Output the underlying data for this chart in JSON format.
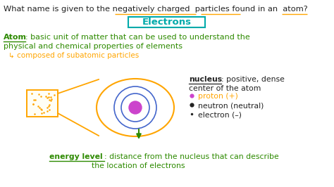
{
  "bg_color": "#ffffff",
  "question_color": "#222222",
  "orange_color": "#FFA500",
  "dark_green": "#2d8a00",
  "teal_color": "#00aaaa",
  "black": "#222222",
  "magenta": "#cc44cc",
  "blue_orbit": "#4466cc",
  "font_family": "sans-serif",
  "q_text": "What name is given to the negatively charged  particles found in an  atom?",
  "electrons_text": "Electrons",
  "atom_line1_prefix": "Atom",
  "atom_line1_rest": ": basic unit of matter that can be used to understand the",
  "atom_line2": "physical and chemical properties of elements",
  "atom_arrow": "↳ composed of subatomic particles",
  "nucleus_word": "nucleus",
  "nucleus_rest": ": positive, dense",
  "nucleus_line2": "center of the atom",
  "proton_text": "proton (+)",
  "neutron_text": "neutron (neutral)",
  "electron_text": "electron (–)",
  "el_word": "energy level",
  "el_rest": ": distance from the nucleus that can describe",
  "el_line2": "the location of electrons"
}
